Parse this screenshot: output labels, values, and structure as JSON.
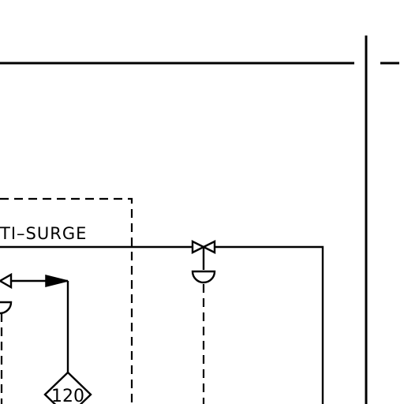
{
  "diagram": {
    "labels": {
      "box_label": "TI–SURGE",
      "instrument_tag": "120"
    },
    "colors": {
      "line": "#000000",
      "background": "#ffffff"
    }
  }
}
